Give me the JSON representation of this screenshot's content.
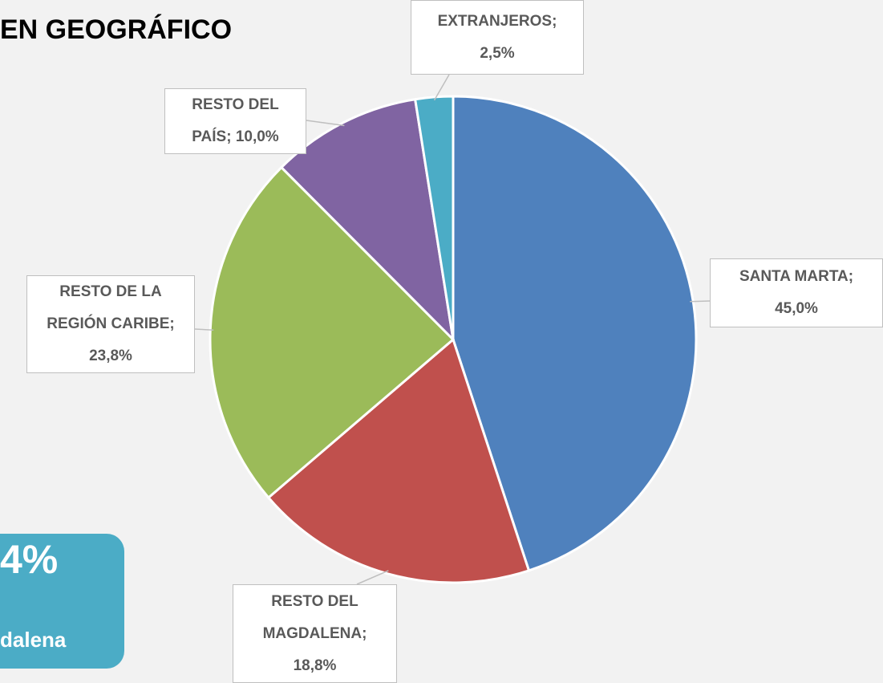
{
  "chart_data": {
    "type": "pie",
    "title": "EN GEOGRÁFICO",
    "values": [
      45.0,
      18.8,
      23.8,
      10.0,
      2.5
    ],
    "value_labels": [
      "SANTA MARTA; 45,0%",
      "RESTO DEL MAGDALENA; 18,8%",
      "RESTO DE LA REGIÓN CARIBE; 23,8%",
      "RESTO DEL PAÍS; 10,0%",
      "EXTRANJEROS; 2,5%"
    ],
    "colors": [
      "#4f81bd",
      "#c0504d",
      "#9bbb59",
      "#8064a2",
      "#4bacc6"
    ],
    "annotations": [
      "4%",
      "dalena"
    ]
  }
}
